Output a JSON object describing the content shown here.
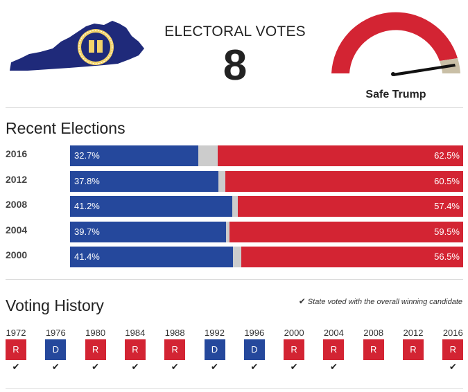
{
  "header": {
    "electoral_label": "ELECTORAL VOTES",
    "electoral_votes": "8",
    "rating": "Safe Trump",
    "seal_text": "COMMONWEALTH OF KENTUCKY",
    "colors": {
      "state_fill": "#1f2a7a",
      "dem": "#25489c",
      "rep": "#d32433",
      "other": "#cccccc",
      "gauge_tail": "#c9bfa6"
    }
  },
  "recent_elections": {
    "title": "Recent Elections",
    "rows": [
      {
        "year": "2016",
        "dem": 32.7,
        "rep": 62.5,
        "dem_label": "32.7%",
        "rep_label": "62.5%"
      },
      {
        "year": "2012",
        "dem": 37.8,
        "rep": 60.5,
        "dem_label": "37.8%",
        "rep_label": "60.5%"
      },
      {
        "year": "2008",
        "dem": 41.2,
        "rep": 57.4,
        "dem_label": "41.2%",
        "rep_label": "57.4%"
      },
      {
        "year": "2004",
        "dem": 39.7,
        "rep": 59.5,
        "dem_label": "39.7%",
        "rep_label": "59.5%"
      },
      {
        "year": "2000",
        "dem": 41.4,
        "rep": 56.5,
        "dem_label": "41.4%",
        "rep_label": "56.5%"
      }
    ]
  },
  "voting_history": {
    "title": "Voting History",
    "legend": "State voted with the overall winning candidate",
    "check_glyph": "✔",
    "items": [
      {
        "year": "1972",
        "party": "R",
        "winner": true
      },
      {
        "year": "1976",
        "party": "D",
        "winner": true
      },
      {
        "year": "1980",
        "party": "R",
        "winner": true
      },
      {
        "year": "1984",
        "party": "R",
        "winner": true
      },
      {
        "year": "1988",
        "party": "R",
        "winner": true
      },
      {
        "year": "1992",
        "party": "D",
        "winner": true
      },
      {
        "year": "1996",
        "party": "D",
        "winner": true
      },
      {
        "year": "2000",
        "party": "R",
        "winner": true
      },
      {
        "year": "2004",
        "party": "R",
        "winner": true
      },
      {
        "year": "2008",
        "party": "R",
        "winner": false
      },
      {
        "year": "2012",
        "party": "R",
        "winner": false
      },
      {
        "year": "2016",
        "party": "R",
        "winner": true
      }
    ]
  }
}
